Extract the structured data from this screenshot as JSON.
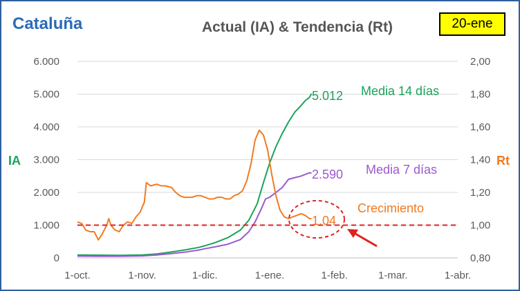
{
  "region_title": "Cataluña",
  "date_badge": "20-ene",
  "chart_data": {
    "type": "line",
    "title": "Actual (IA) & Tendencia (Rt)",
    "ylabel_left": "IA",
    "ylabel_right": "Rt",
    "ylim_left": [
      0,
      6000
    ],
    "ylim_right": [
      0.8,
      2.0
    ],
    "yticks_left": [
      "0",
      "1.000",
      "2.000",
      "3.000",
      "4.000",
      "5.000",
      "6.000"
    ],
    "yticks_right": [
      "0,80",
      "1,00",
      "1,20",
      "1,40",
      "1,60",
      "1,80",
      "2,00"
    ],
    "x_range_days": [
      0,
      182
    ],
    "xticks": [
      {
        "label": "1-oct.",
        "day": 0
      },
      {
        "label": "1-nov.",
        "day": 31
      },
      {
        "label": "1-dic.",
        "day": 61
      },
      {
        "label": "1-ene.",
        "day": 92
      },
      {
        "label": "1-feb.",
        "day": 123
      },
      {
        "label": "1-mar.",
        "day": 151
      },
      {
        "label": "1-abr.",
        "day": 182
      }
    ],
    "series": [
      {
        "name": "Media 14 días",
        "axis": "left",
        "color": "#1aa35a",
        "end_label": "5.012",
        "points": [
          [
            0,
            90
          ],
          [
            10,
            85
          ],
          [
            20,
            80
          ],
          [
            31,
            90
          ],
          [
            38,
            120
          ],
          [
            45,
            180
          ],
          [
            52,
            250
          ],
          [
            58,
            320
          ],
          [
            61,
            370
          ],
          [
            66,
            470
          ],
          [
            72,
            620
          ],
          [
            78,
            850
          ],
          [
            82,
            1150
          ],
          [
            86,
            1650
          ],
          [
            89,
            2300
          ],
          [
            92,
            2900
          ],
          [
            95,
            3400
          ],
          [
            98,
            3800
          ],
          [
            101,
            4150
          ],
          [
            104,
            4450
          ],
          [
            107,
            4650
          ],
          [
            109,
            4800
          ],
          [
            111,
            4900
          ],
          [
            112,
            5012
          ]
        ]
      },
      {
        "name": "Media 7 días",
        "axis": "left",
        "color": "#9b59d0",
        "end_label": "2.590",
        "points": [
          [
            0,
            55
          ],
          [
            10,
            50
          ],
          [
            20,
            50
          ],
          [
            31,
            60
          ],
          [
            38,
            90
          ],
          [
            45,
            130
          ],
          [
            52,
            180
          ],
          [
            58,
            240
          ],
          [
            61,
            280
          ],
          [
            66,
            340
          ],
          [
            72,
            420
          ],
          [
            78,
            560
          ],
          [
            82,
            800
          ],
          [
            85,
            1100
          ],
          [
            88,
            1500
          ],
          [
            90,
            1800
          ],
          [
            92,
            1850
          ],
          [
            95,
            2000
          ],
          [
            98,
            2150
          ],
          [
            101,
            2400
          ],
          [
            104,
            2450
          ],
          [
            107,
            2500
          ],
          [
            109,
            2550
          ],
          [
            111,
            2600
          ],
          [
            112,
            2590
          ]
        ]
      },
      {
        "name": "Crecimiento",
        "axis": "right",
        "color": "#f07a22",
        "end_label": "1.04",
        "points": [
          [
            0,
            1.02
          ],
          [
            2,
            1.01
          ],
          [
            4,
            0.97
          ],
          [
            6,
            0.96
          ],
          [
            8,
            0.96
          ],
          [
            10,
            0.91
          ],
          [
            12,
            0.95
          ],
          [
            14,
            1.0
          ],
          [
            15,
            1.04
          ],
          [
            16,
            1.0
          ],
          [
            18,
            0.97
          ],
          [
            20,
            0.96
          ],
          [
            22,
            1.0
          ],
          [
            24,
            1.02
          ],
          [
            26,
            1.01
          ],
          [
            28,
            1.05
          ],
          [
            30,
            1.08
          ],
          [
            32,
            1.14
          ],
          [
            33,
            1.26
          ],
          [
            35,
            1.24
          ],
          [
            38,
            1.25
          ],
          [
            40,
            1.24
          ],
          [
            42,
            1.24
          ],
          [
            45,
            1.23
          ],
          [
            47,
            1.2
          ],
          [
            49,
            1.18
          ],
          [
            51,
            1.17
          ],
          [
            53,
            1.17
          ],
          [
            55,
            1.17
          ],
          [
            57,
            1.18
          ],
          [
            59,
            1.18
          ],
          [
            61,
            1.17
          ],
          [
            63,
            1.16
          ],
          [
            65,
            1.16
          ],
          [
            67,
            1.17
          ],
          [
            69,
            1.17
          ],
          [
            71,
            1.16
          ],
          [
            73,
            1.16
          ],
          [
            75,
            1.18
          ],
          [
            77,
            1.19
          ],
          [
            79,
            1.21
          ],
          [
            81,
            1.27
          ],
          [
            83,
            1.37
          ],
          [
            85,
            1.52
          ],
          [
            87,
            1.58
          ],
          [
            89,
            1.55
          ],
          [
            91,
            1.46
          ],
          [
            93,
            1.31
          ],
          [
            95,
            1.18
          ],
          [
            97,
            1.09
          ],
          [
            99,
            1.05
          ],
          [
            101,
            1.04
          ],
          [
            103,
            1.05
          ],
          [
            105,
            1.06
          ],
          [
            107,
            1.07
          ],
          [
            109,
            1.06
          ],
          [
            111,
            1.04
          ],
          [
            112,
            1.04
          ]
        ]
      }
    ],
    "reference_line": {
      "axis": "right",
      "value": 1.0,
      "color": "#e02020",
      "style": "dashed"
    }
  }
}
